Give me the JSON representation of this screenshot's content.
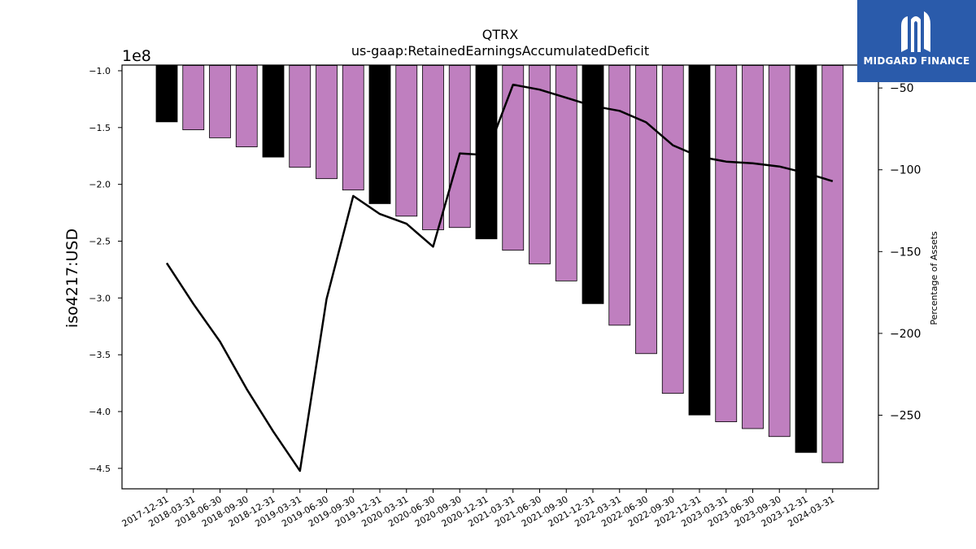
{
  "logo": {
    "text": "MIDGARD FINANCE",
    "icon": "midgard-logo-icon",
    "bg_color": "#2a5bab"
  },
  "chart_data": {
    "type": "bar",
    "title": "QTRX",
    "subtitle": "us-gaap:RetainedEarningsAccumulatedDeficit",
    "ylabel": "iso4217:USD",
    "ylabel_right": "Percentage of Assets",
    "y_offset_label": "1e8",
    "ylim": [
      -4.68,
      -0.95
    ],
    "ylim_right": [
      -295,
      -36
    ],
    "yticks": [
      -1.0,
      -1.5,
      -2.0,
      -2.5,
      -3.0,
      -3.5,
      -4.0,
      -4.5
    ],
    "ytick_labels": [
      "−1.0",
      "−1.5",
      "−2.0",
      "−2.5",
      "−3.0",
      "−3.5",
      "−4.0",
      "−4.5"
    ],
    "yticks_right": [
      -50,
      -100,
      -150,
      -200,
      -250
    ],
    "ytick_right_labels": [
      "−50",
      "−100",
      "−150",
      "−200",
      "−250"
    ],
    "categories": [
      "2017-12-31",
      "2018-03-31",
      "2018-06-30",
      "2018-09-30",
      "2018-12-31",
      "2019-03-31",
      "2019-06-30",
      "2019-09-30",
      "2019-12-31",
      "2020-03-31",
      "2020-06-30",
      "2020-09-30",
      "2020-12-31",
      "2021-03-31",
      "2021-06-30",
      "2021-09-30",
      "2021-12-31",
      "2022-03-31",
      "2022-06-30",
      "2022-09-30",
      "2022-12-31",
      "2023-03-31",
      "2023-06-30",
      "2023-09-30",
      "2023-12-31",
      "2024-03-31"
    ],
    "series": [
      {
        "type": "bar",
        "values": [
          -1.45,
          -1.52,
          -1.59,
          -1.67,
          -1.76,
          -1.85,
          -1.95,
          -2.05,
          -2.17,
          -2.28,
          -2.4,
          -2.38,
          -2.48,
          -2.58,
          -2.7,
          -2.85,
          -3.05,
          -3.24,
          -3.49,
          -3.84,
          -4.03,
          -4.09,
          -4.15,
          -4.22,
          -4.36,
          -4.45
        ],
        "colors": [
          "#000000",
          "#bf7fbf",
          "#bf7fbf",
          "#bf7fbf",
          "#000000",
          "#bf7fbf",
          "#bf7fbf",
          "#bf7fbf",
          "#000000",
          "#bf7fbf",
          "#bf7fbf",
          "#bf7fbf",
          "#000000",
          "#bf7fbf",
          "#bf7fbf",
          "#bf7fbf",
          "#000000",
          "#bf7fbf",
          "#bf7fbf",
          "#bf7fbf",
          "#000000",
          "#bf7fbf",
          "#bf7fbf",
          "#bf7fbf",
          "#000000",
          "#bf7fbf"
        ]
      },
      {
        "type": "line",
        "axis": "right",
        "color": "#000000",
        "values": [
          -157,
          -182,
          -205,
          -234,
          -260,
          -284,
          -179,
          -116,
          -127,
          -133,
          -147,
          -90,
          -91,
          -48,
          -51,
          -56,
          -61,
          -64,
          -71,
          -85,
          -92,
          -95,
          -96,
          -98,
          -102,
          -107
        ]
      }
    ],
    "grid": false,
    "legend": "none"
  }
}
